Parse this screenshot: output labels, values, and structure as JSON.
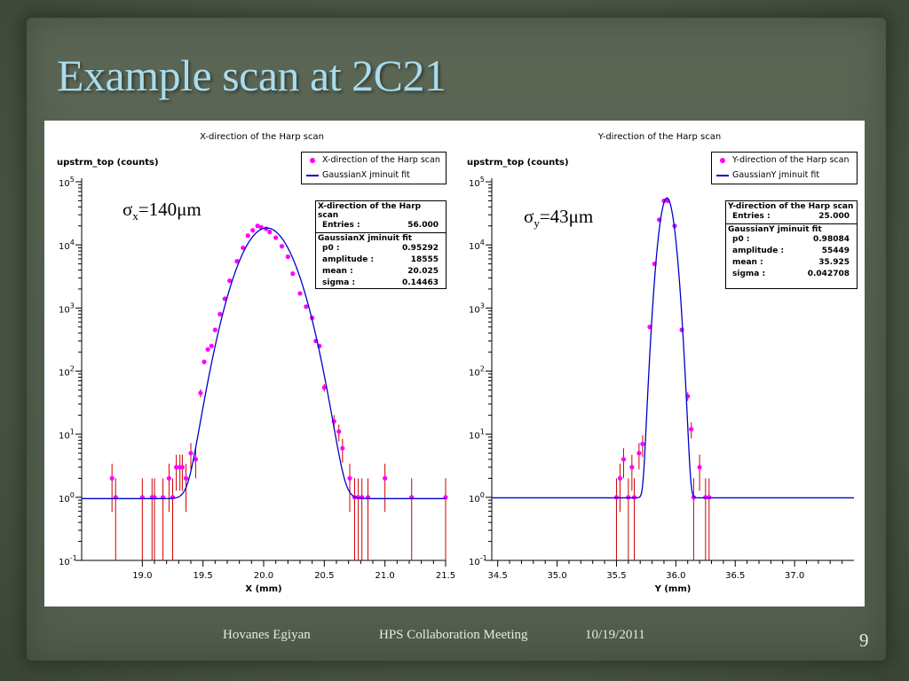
{
  "slide": {
    "title": "Example scan at 2C21",
    "footer": {
      "author": "Hovanes Egiyan",
      "meeting": "HPS Collaboration Meeting",
      "date": "10/19/2011",
      "page": "9"
    }
  },
  "colors": {
    "title": "#a9dcec",
    "data_points": "#ff00ff",
    "error_bars": "#cc0000",
    "fit_line": "#0000cc"
  },
  "annotations": {
    "left": {
      "sym": "σ",
      "sub": "x",
      "rest": "=140μm"
    },
    "right": {
      "sym": "σ",
      "sub": "y",
      "rest": "=43μm"
    }
  },
  "legends": {
    "left": {
      "points": "X-direction of the Harp scan",
      "fit": "GaussianX jminuit fit"
    },
    "right": {
      "points": "Y-direction of the Harp scan",
      "fit": "GaussianY jminuit fit"
    }
  },
  "stats": {
    "left": {
      "hist_title": "X-direction of the Harp scan",
      "entries_label": "Entries :",
      "entries": "56.000",
      "fit_title": "GaussianX jminuit fit",
      "rows": [
        {
          "label": "p0 :",
          "value": "0.95292"
        },
        {
          "label": "amplitude :",
          "value": "18555"
        },
        {
          "label": "mean :",
          "value": "20.025"
        },
        {
          "label": "sigma :",
          "value": "0.14463"
        }
      ]
    },
    "right": {
      "hist_title": "Y-direction of the Harp scan",
      "entries_label": "Entries :",
      "entries": "25.000",
      "fit_title": "GaussianY jminuit fit",
      "rows": [
        {
          "label": "p0 :",
          "value": "0.98084"
        },
        {
          "label": "amplitude :",
          "value": "55449"
        },
        {
          "label": "mean :",
          "value": "35.925"
        },
        {
          "label": "sigma :",
          "value": "0.042708"
        }
      ]
    }
  },
  "chart_data": [
    {
      "type": "scatter",
      "title": "X-direction of the Harp scan",
      "xlabel": "X (mm)",
      "ylabel": "upstrm_top (counts)",
      "yscale": "log",
      "xlim": [
        18.5,
        21.5
      ],
      "ylim": [
        0.1,
        100000
      ],
      "xticks": [
        "19.0",
        "19.5",
        "20.0",
        "20.5",
        "21.0",
        "21.5"
      ],
      "yticks": [
        {
          "b": "10",
          "e": "-1"
        },
        {
          "b": "10",
          "e": "0"
        },
        {
          "b": "10",
          "e": "1"
        },
        {
          "b": "10",
          "e": "2"
        },
        {
          "b": "10",
          "e": "3"
        },
        {
          "b": "10",
          "e": "4"
        },
        {
          "b": "10",
          "e": "5"
        }
      ],
      "series": [
        {
          "name": "X-direction of the Harp scan",
          "points": [
            [
              18.75,
              2
            ],
            [
              18.78,
              1
            ],
            [
              19.0,
              1
            ],
            [
              19.08,
              1
            ],
            [
              19.1,
              1
            ],
            [
              19.17,
              1
            ],
            [
              19.22,
              2
            ],
            [
              19.25,
              1
            ],
            [
              19.28,
              3
            ],
            [
              19.31,
              3
            ],
            [
              19.33,
              3
            ],
            [
              19.36,
              2
            ],
            [
              19.4,
              5
            ],
            [
              19.44,
              4
            ],
            [
              19.48,
              45
            ],
            [
              19.51,
              140
            ],
            [
              19.54,
              220
            ],
            [
              19.57,
              250
            ],
            [
              19.6,
              450
            ],
            [
              19.64,
              800
            ],
            [
              19.68,
              1400
            ],
            [
              19.72,
              2700
            ],
            [
              19.78,
              5500
            ],
            [
              19.83,
              9000
            ],
            [
              19.87,
              14000
            ],
            [
              19.91,
              17000
            ],
            [
              19.95,
              20000
            ],
            [
              19.98,
              19000
            ],
            [
              20.02,
              18000
            ],
            [
              20.05,
              16000
            ],
            [
              20.1,
              13000
            ],
            [
              20.15,
              9500
            ],
            [
              20.2,
              6500
            ],
            [
              20.24,
              3500
            ],
            [
              20.3,
              1700
            ],
            [
              20.35,
              1050
            ],
            [
              20.4,
              700
            ],
            [
              20.43,
              300
            ],
            [
              20.46,
              250
            ],
            [
              20.5,
              55
            ],
            [
              20.58,
              16
            ],
            [
              20.62,
              11
            ],
            [
              20.65,
              6
            ],
            [
              20.71,
              2
            ],
            [
              20.75,
              1
            ],
            [
              20.78,
              1
            ],
            [
              20.81,
              1
            ],
            [
              20.86,
              1
            ],
            [
              21.0,
              2
            ],
            [
              21.22,
              1
            ],
            [
              21.5,
              1
            ]
          ]
        },
        {
          "name": "GaussianX jminuit fit",
          "fit": {
            "p0": 0.95292,
            "amplitude": 18555,
            "mean": 20.025,
            "sigma": 0.14463
          }
        }
      ]
    },
    {
      "type": "scatter",
      "title": "Y-direction of the Harp scan",
      "xlabel": "Y (mm)",
      "ylabel": "upstrm_top (counts)",
      "yscale": "log",
      "xlim": [
        34.45,
        37.5
      ],
      "ylim": [
        0.1,
        100000
      ],
      "xticks": [
        "34.5",
        "35.0",
        "35.5",
        "36.0",
        "36.5",
        "37.0"
      ],
      "yticks": [
        {
          "b": "10",
          "e": "-1"
        },
        {
          "b": "10",
          "e": "0"
        },
        {
          "b": "10",
          "e": "1"
        },
        {
          "b": "10",
          "e": "2"
        },
        {
          "b": "10",
          "e": "3"
        },
        {
          "b": "10",
          "e": "4"
        },
        {
          "b": "10",
          "e": "5"
        }
      ],
      "series": [
        {
          "name": "Y-direction of the Harp scan",
          "points": [
            [
              35.5,
              1
            ],
            [
              35.53,
              2
            ],
            [
              35.56,
              4
            ],
            [
              35.6,
              1
            ],
            [
              35.63,
              3
            ],
            [
              35.65,
              1
            ],
            [
              35.69,
              5
            ],
            [
              35.72,
              7
            ],
            [
              35.78,
              500
            ],
            [
              35.82,
              5000
            ],
            [
              35.86,
              25000
            ],
            [
              35.9,
              50000
            ],
            [
              35.93,
              50000
            ],
            [
              35.99,
              20000
            ],
            [
              36.05,
              450
            ],
            [
              36.1,
              40
            ],
            [
              36.13,
              12
            ],
            [
              36.15,
              1
            ],
            [
              36.2,
              3
            ],
            [
              36.25,
              1
            ],
            [
              36.28,
              1
            ]
          ]
        },
        {
          "name": "GaussianY jminuit fit",
          "fit": {
            "p0": 0.98084,
            "amplitude": 55449,
            "mean": 35.925,
            "sigma": 0.042708
          }
        }
      ]
    }
  ]
}
